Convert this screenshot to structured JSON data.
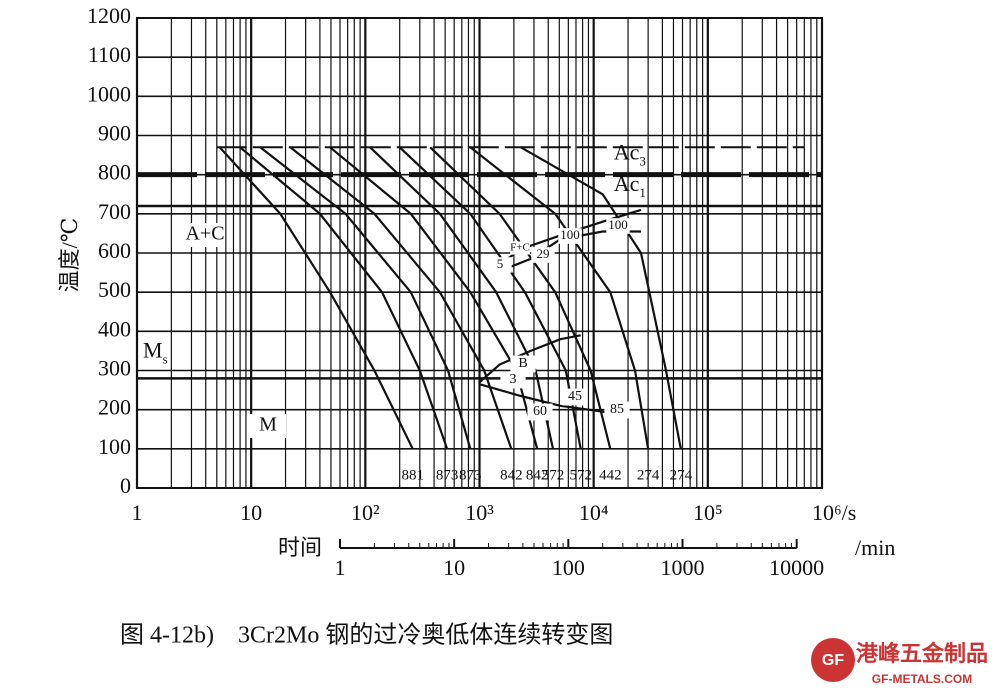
{
  "chart_data": {
    "type": "line",
    "xscale": "log",
    "xlim": [
      1,
      1000000
    ],
    "ylim": [
      0,
      1200
    ],
    "yticks": [
      0,
      100,
      200,
      300,
      400,
      500,
      600,
      700,
      800,
      900,
      1000,
      1100,
      1200
    ],
    "xticks": [
      1,
      10,
      {
        "value": 100,
        "label": "10²"
      },
      {
        "value": 1000,
        "label": "10³"
      },
      {
        "value": 10000,
        "label": "10⁴"
      },
      {
        "value": 100000,
        "label": "10⁵"
      },
      {
        "value": 1000000,
        "label": "10⁶/s"
      }
    ],
    "y_label": "温度/℃",
    "x2_label": "时间",
    "x2_unit": "/min",
    "x2lim": [
      0.01667,
      16667
    ],
    "x2ticks": [
      1,
      10,
      100,
      1000,
      10000
    ],
    "grid": true,
    "color": "#111111",
    "series": [
      {
        "x": [
          5.3,
          18,
          49,
          120,
          260
        ],
        "values": [
          870,
          700,
          500,
          300,
          100
        ],
        "hardness": 881
      },
      {
        "x": [
          8,
          40,
          140,
          300,
          520
        ],
        "values": [
          870,
          700,
          500,
          300,
          100
        ],
        "hardness": 873
      },
      {
        "x": [
          12,
          67,
          250,
          530,
          830
        ],
        "values": [
          870,
          700,
          500,
          300,
          100
        ],
        "hardness": 873
      },
      {
        "x": [
          22,
          120,
          450,
          1100,
          1900
        ],
        "values": [
          870,
          700,
          500,
          300,
          100
        ],
        "hardness": 842
      },
      {
        "x": [
          49,
          250,
          830,
          2100,
          3200
        ],
        "values": [
          870,
          700,
          500,
          300,
          100
        ],
        "hardness": 842
      },
      {
        "x": [
          110,
          450,
          1400,
          3100,
          4400
        ],
        "values": [
          870,
          700,
          500,
          300,
          100
        ],
        "hardness": 572
      },
      {
        "x": [
          200,
          830,
          2500,
          5700,
          7700
        ],
        "values": [
          870,
          700,
          500,
          300,
          100
        ],
        "hardness": 572
      },
      {
        "x": [
          370,
          1500,
          4600,
          9400,
          14000
        ],
        "values": [
          870,
          700,
          500,
          300,
          100
        ],
        "hardness": 442
      },
      {
        "x": [
          830,
          4600,
          14000,
          23000,
          30000
        ],
        "values": [
          870,
          700,
          500,
          300,
          100
        ],
        "hardness": 274
      },
      {
        "x": [
          2300,
          12000,
          26000,
          43000,
          58000
        ],
        "values": [
          870,
          750,
          600,
          300,
          100
        ],
        "hardness": 274
      }
    ],
    "boundaries": [
      {
        "x": [
          1500,
          2300,
          5100,
          12000,
          26000
        ],
        "values": [
          570,
          610,
          645,
          680,
          710
        ]
      },
      {
        "x": [
          1700,
          2800,
          5100,
          12000,
          26000
        ],
        "values": [
          560,
          585,
          635,
          655,
          655
        ]
      },
      {
        "x": [
          1000,
          1500,
          2800,
          5100,
          7700
        ],
        "values": [
          270,
          315,
          350,
          380,
          390
        ]
      },
      {
        "x": [
          1000,
          2300,
          5100,
          12000,
          17000
        ],
        "values": [
          265,
          235,
          210,
          195,
          185
        ]
      }
    ],
    "reference_lines": [
      {
        "value": 870
      },
      {
        "value": 800,
        "base": "Ac",
        "sub": "3"
      },
      {
        "value": 720,
        "base": "Ac",
        "sub": "1"
      },
      {
        "value": 280,
        "base": "M",
        "sub": "s"
      }
    ],
    "annotations": [
      "A+C",
      "M",
      "F+C",
      "5",
      "29",
      "100",
      "100",
      "B",
      "3",
      "45",
      "60",
      "85"
    ]
  },
  "caption": "图 4-12b)    3Cr2Mo 钢的过冷奥低体连续转变图",
  "watermark": {
    "logo": "GF",
    "name": "港峰五金制品",
    "url": "GF-METALS.COM"
  }
}
